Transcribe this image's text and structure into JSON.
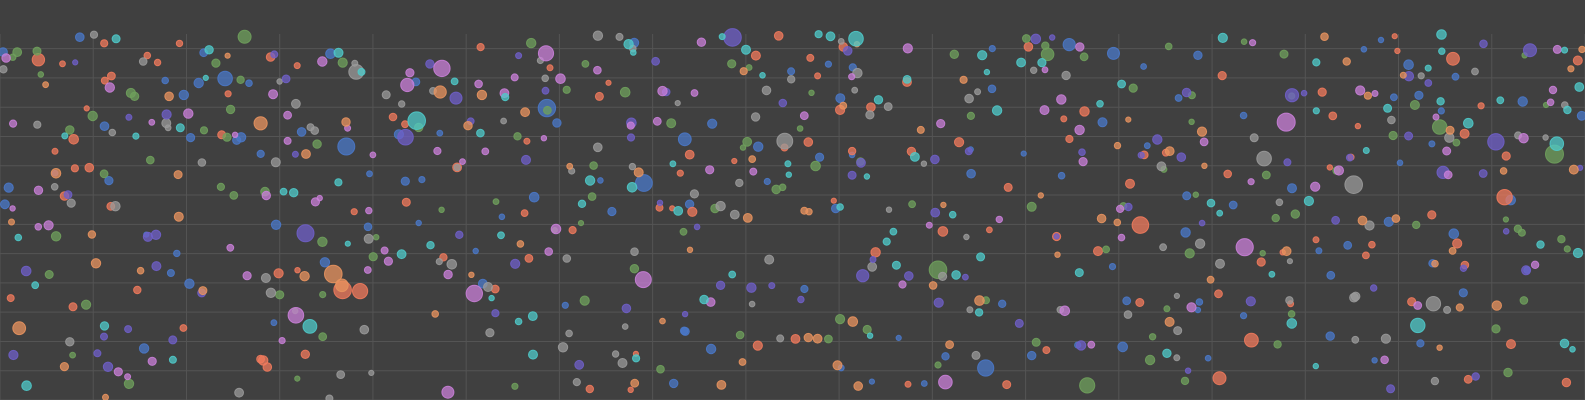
{
  "chart_data": {
    "type": "scatter",
    "title": "",
    "xlabel": "",
    "ylabel": "",
    "xlim": [
      0,
      17
    ],
    "ylim": [
      0,
      12.5
    ],
    "grid": true,
    "legend": "none",
    "background": "#404040",
    "grid_color": "#545454",
    "series": [
      {
        "color": "#4a78c8",
        "seed": 11,
        "count": 120
      },
      {
        "color": "#f07a5c",
        "seed": 23,
        "count": 120
      },
      {
        "color": "#6fa05c",
        "seed": 37,
        "count": 120
      },
      {
        "color": "#9a9a9a",
        "seed": 41,
        "count": 110
      },
      {
        "color": "#6f5fc8",
        "seed": 53,
        "count": 90
      },
      {
        "color": "#c97fd8",
        "seed": 67,
        "count": 95
      },
      {
        "color": "#e8935f",
        "seed": 71,
        "count": 80
      },
      {
        "color": "#4fc9c9",
        "seed": 83,
        "count": 95
      }
    ]
  }
}
